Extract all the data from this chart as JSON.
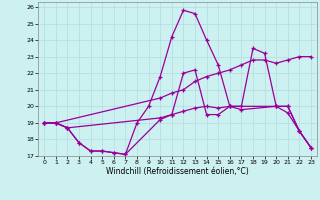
{
  "xlabel": "Windchill (Refroidissement éolien,°C)",
  "bg_color": "#cdf0f0",
  "grid_color": "#b0dde0",
  "line_color": "#990099",
  "xlim": [
    -0.5,
    23.5
  ],
  "ylim": [
    17,
    26.3
  ],
  "xticks": [
    0,
    1,
    2,
    3,
    4,
    5,
    6,
    7,
    8,
    9,
    10,
    11,
    12,
    13,
    14,
    15,
    16,
    17,
    18,
    19,
    20,
    21,
    22,
    23
  ],
  "yticks": [
    17,
    18,
    19,
    20,
    21,
    22,
    23,
    24,
    25,
    26
  ],
  "line1_x": [
    0,
    1,
    2,
    3,
    4,
    5,
    6,
    7,
    10,
    11,
    12,
    13,
    14,
    15,
    16,
    17,
    20,
    21,
    22,
    23
  ],
  "line1_y": [
    19,
    19,
    18.7,
    17.8,
    17.3,
    17.3,
    17.2,
    17.1,
    19.2,
    19.5,
    19.7,
    19.9,
    20.0,
    19.9,
    20.0,
    19.8,
    20.0,
    19.6,
    18.5,
    17.5
  ],
  "line2_x": [
    0,
    1,
    2,
    10,
    11,
    12,
    13,
    14,
    15,
    16,
    20,
    21,
    22,
    23
  ],
  "line2_y": [
    19,
    19,
    18.7,
    19.3,
    19.5,
    22.0,
    22.2,
    19.5,
    19.5,
    20.0,
    20.0,
    20.0,
    18.5,
    17.5
  ],
  "line3_x": [
    0,
    1,
    10,
    11,
    12,
    13,
    14,
    15,
    16,
    17,
    18,
    19,
    20,
    21,
    22,
    23
  ],
  "line3_y": [
    19.0,
    19.0,
    20.5,
    20.8,
    21.0,
    21.5,
    21.8,
    22.0,
    22.2,
    22.5,
    22.8,
    22.8,
    22.6,
    22.8,
    23.0,
    23.0
  ],
  "line4_x": [
    0,
    1,
    2,
    3,
    4,
    5,
    6,
    7,
    8,
    9,
    10,
    11,
    12,
    13,
    14,
    15,
    16,
    17,
    18,
    19,
    20,
    21,
    22,
    23
  ],
  "line4_y": [
    19.0,
    19.0,
    18.7,
    17.8,
    17.3,
    17.3,
    17.2,
    17.1,
    19.0,
    20.0,
    21.8,
    24.2,
    25.8,
    25.6,
    24.0,
    22.5,
    20.0,
    20.0,
    23.5,
    23.2,
    20.0,
    20.0,
    18.5,
    17.5
  ]
}
